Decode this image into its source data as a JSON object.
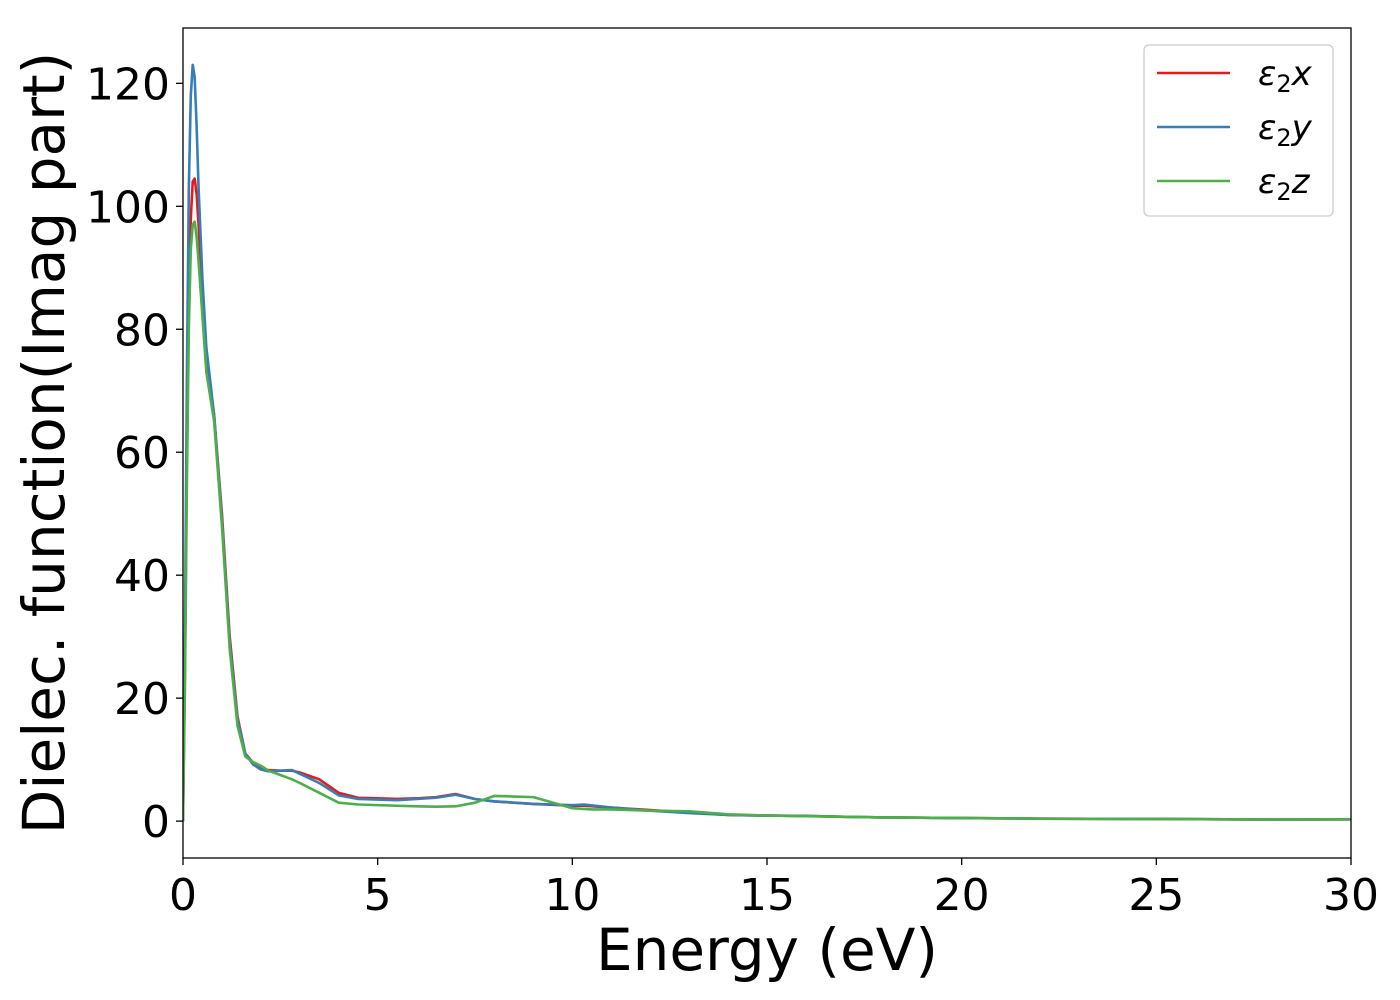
{
  "chart_data": {
    "type": "line",
    "title": "",
    "xlabel": "Energy (eV)",
    "ylabel": "Dielec. function(Imag part)",
    "xlim": [
      0,
      30
    ],
    "ylim": [
      -6,
      129
    ],
    "xticks": [
      0,
      5,
      10,
      15,
      20,
      25,
      30
    ],
    "yticks": [
      0,
      20,
      40,
      60,
      80,
      100,
      120
    ],
    "grid": false,
    "legend_position": "top-right",
    "series": [
      {
        "name": "ε₂x",
        "legend_base": "ε",
        "legend_sub": "2",
        "legend_suffix": "x",
        "color": "#e41a1c",
        "x": [
          0,
          0.05,
          0.1,
          0.15,
          0.2,
          0.25,
          0.3,
          0.35,
          0.4,
          0.5,
          0.6,
          0.8,
          1.0,
          1.2,
          1.4,
          1.6,
          1.8,
          2.0,
          2.2,
          2.5,
          2.8,
          3.0,
          3.5,
          4.0,
          4.5,
          5.0,
          5.5,
          6.0,
          6.5,
          7.0,
          7.5,
          8.0,
          9.0,
          10.0,
          10.3,
          11.0,
          12.0,
          13.0,
          14.0,
          15.0,
          16.0,
          17.0,
          18.0,
          20.0,
          22.0,
          25.0,
          28.0,
          30.0
        ],
        "y": [
          0,
          25,
          60,
          85,
          98,
          104,
          104.5,
          102,
          97,
          85,
          75,
          66,
          50,
          30,
          17,
          11,
          9.5,
          8.5,
          8.3,
          8.2,
          8.2,
          7.9,
          6.8,
          4.6,
          3.8,
          3.7,
          3.6,
          3.7,
          3.9,
          4.4,
          3.6,
          3.2,
          2.8,
          2.5,
          2.5,
          2.2,
          1.8,
          1.4,
          1.0,
          0.9,
          0.85,
          0.7,
          0.6,
          0.5,
          0.4,
          0.35,
          0.25,
          0.3
        ]
      },
      {
        "name": "ε₂y",
        "legend_base": "ε",
        "legend_sub": "2",
        "legend_suffix": "y",
        "color": "#377eb8",
        "x": [
          0,
          0.05,
          0.1,
          0.15,
          0.2,
          0.25,
          0.3,
          0.35,
          0.4,
          0.5,
          0.6,
          0.8,
          1.0,
          1.2,
          1.4,
          1.6,
          1.8,
          2.0,
          2.2,
          2.5,
          2.8,
          3.0,
          3.5,
          4.0,
          4.5,
          5.0,
          5.5,
          6.0,
          6.5,
          7.0,
          7.5,
          8.0,
          9.0,
          10.0,
          10.3,
          11.0,
          12.0,
          13.0,
          14.0,
          15.0,
          16.0,
          17.0,
          18.0,
          20.0,
          22.0,
          25.0,
          28.0,
          30.0
        ],
        "y": [
          0,
          30,
          72,
          103,
          118,
          123,
          121,
          113,
          103,
          88,
          77,
          66,
          49,
          29,
          16.5,
          11,
          9.2,
          8.4,
          8.1,
          8.2,
          8.3,
          7.7,
          6.2,
          4.2,
          3.6,
          3.5,
          3.4,
          3.6,
          3.8,
          4.3,
          3.6,
          3.2,
          2.8,
          2.6,
          2.7,
          2.2,
          1.7,
          1.3,
          1.0,
          0.9,
          0.85,
          0.7,
          0.6,
          0.5,
          0.4,
          0.35,
          0.25,
          0.3
        ]
      },
      {
        "name": "ε₂z",
        "legend_base": "ε",
        "legend_sub": "2",
        "legend_suffix": "z",
        "color": "#4daf4a",
        "x": [
          0,
          0.05,
          0.1,
          0.15,
          0.2,
          0.25,
          0.3,
          0.35,
          0.4,
          0.5,
          0.6,
          0.8,
          1.0,
          1.2,
          1.4,
          1.6,
          1.8,
          2.0,
          2.2,
          2.5,
          2.8,
          3.0,
          3.5,
          4.0,
          4.5,
          5.0,
          5.5,
          6.0,
          6.5,
          7.0,
          7.5,
          8.0,
          8.5,
          9.0,
          9.5,
          10.0,
          10.5,
          11.0,
          12.0,
          13.0,
          14.0,
          15.0,
          16.0,
          17.0,
          18.0,
          20.0,
          22.0,
          25.0,
          28.0,
          30.0
        ],
        "y": [
          0,
          22,
          55,
          80,
          93,
          97,
          97.5,
          95,
          91,
          82,
          73,
          65,
          48,
          28,
          15.5,
          10.5,
          9.6,
          9.0,
          8.2,
          7.5,
          6.8,
          6.2,
          4.6,
          3.0,
          2.7,
          2.6,
          2.5,
          2.4,
          2.35,
          2.4,
          3.0,
          4.1,
          4.0,
          3.9,
          3.0,
          2.1,
          1.9,
          1.9,
          1.7,
          1.6,
          1.1,
          0.9,
          0.8,
          0.7,
          0.6,
          0.5,
          0.4,
          0.35,
          0.25,
          0.3
        ]
      }
    ]
  }
}
